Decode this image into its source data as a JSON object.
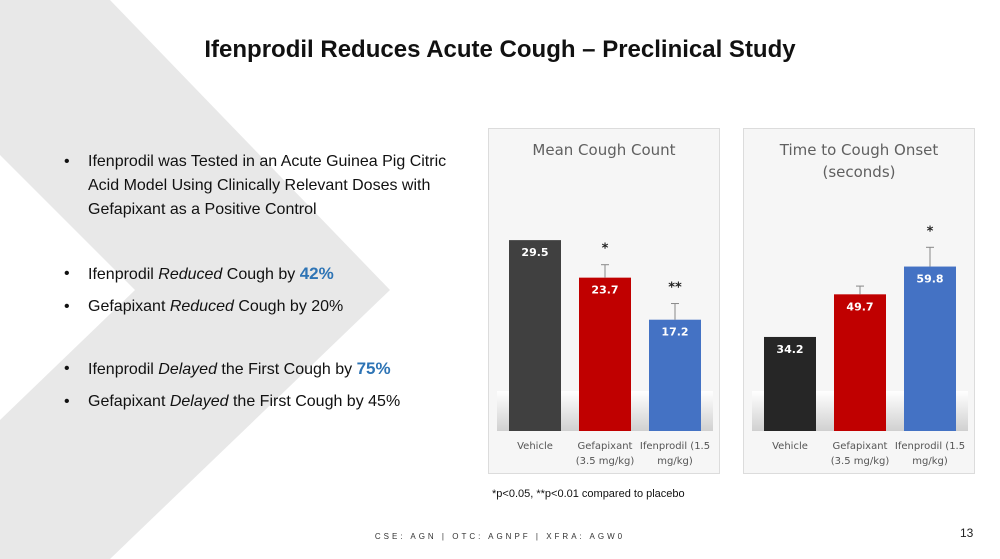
{
  "slide": {
    "title": "Ifenprodil Reduces Acute Cough – Preclinical Study",
    "footer": "CSE: AGN | OTC: AGNPF | XFRA: AGW0",
    "page_number": "13",
    "footnote": "*p<0.05,   **p<0.01 compared to placebo",
    "bg_color": "#e8e8e8"
  },
  "bullets": {
    "marker": "•",
    "b1": "Ifenprodil was Tested in an Acute Guinea Pig Citric Acid Model Using Clinically Relevant Doses with Gefapixant as a Positive Control",
    "b2": {
      "a": "Ifenprodil ",
      "b": "Reduced",
      "c": " Cough by ",
      "pct": "42%"
    },
    "b3": {
      "a": "Gefapixant ",
      "b": "Reduced",
      "c": " Cough by 20%"
    },
    "b4": {
      "a": "Ifenprodil ",
      "b": "Delayed",
      "c": " the First Cough by ",
      "pct": "75%"
    },
    "b5": {
      "a": "Gefapixant ",
      "b": "Delayed",
      "c": " the First Cough by 45%"
    }
  },
  "chart_data": [
    {
      "type": "bar",
      "title": "Mean Cough Count",
      "categories": [
        "Vehicle",
        "Gefapixant (3.5 mg/kg)",
        "Ifenprodil (1.5 mg/kg)"
      ],
      "values": [
        29.5,
        23.7,
        17.2
      ],
      "value_labels": [
        "29.5",
        "23.7",
        "17.2"
      ],
      "error": [
        0,
        2.0,
        2.5
      ],
      "significance": [
        "",
        "*",
        "**"
      ],
      "colors": [
        "#404040",
        "#c00000",
        "#4472c4"
      ],
      "ylim": [
        0,
        34
      ],
      "grid": false
    },
    {
      "type": "bar",
      "title": "Time to Cough Onset (seconds)",
      "categories": [
        "Vehicle",
        "Gefapixant (3.5 mg/kg)",
        "Ifenprodil (1.5 mg/kg)"
      ],
      "values": [
        34.2,
        49.7,
        59.8
      ],
      "value_labels": [
        "34.2",
        "49.7",
        "59.8"
      ],
      "error": [
        0,
        3.0,
        7.0
      ],
      "significance": [
        "",
        "",
        "*"
      ],
      "colors": [
        "#262626",
        "#c00000",
        "#4472c4"
      ],
      "ylim": [
        0,
        80
      ],
      "grid": false
    }
  ]
}
